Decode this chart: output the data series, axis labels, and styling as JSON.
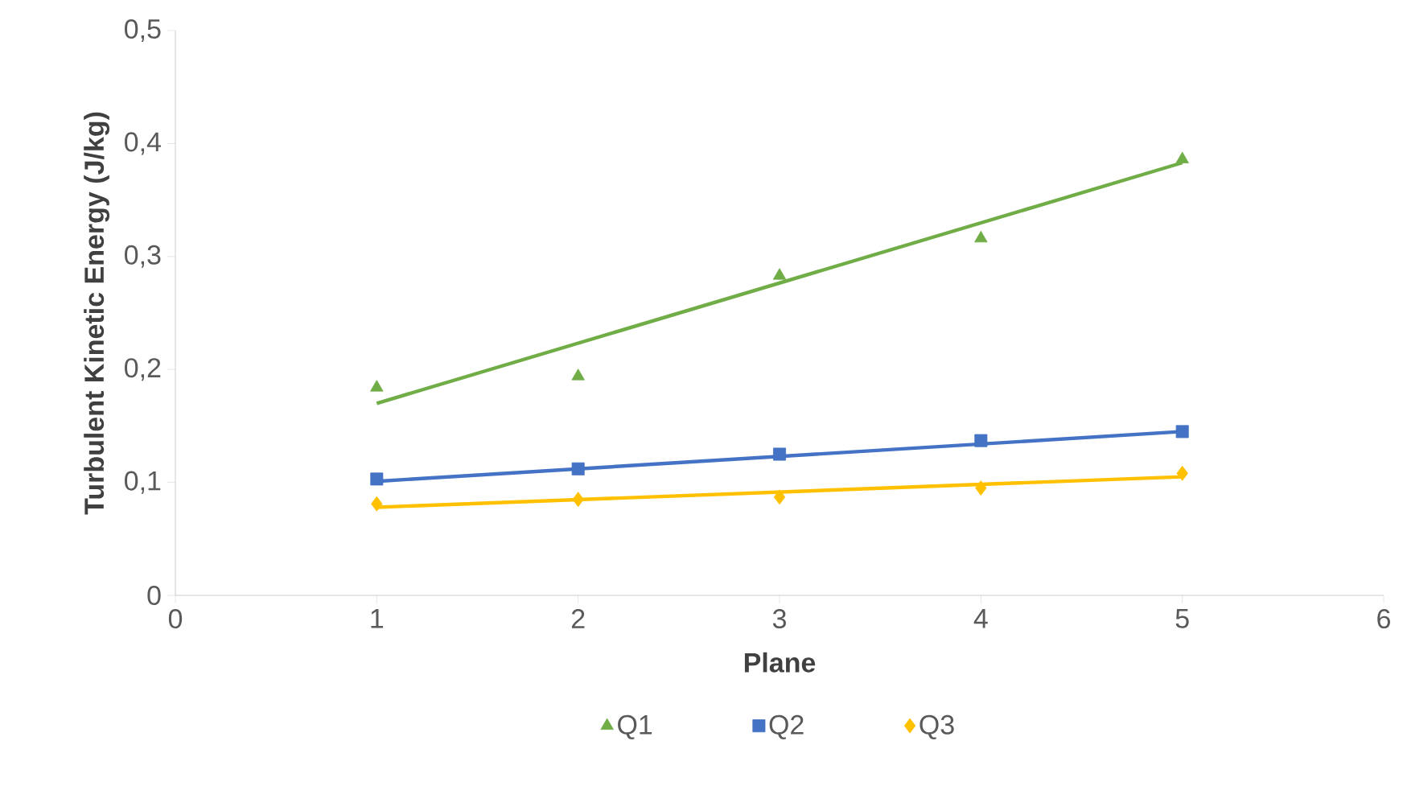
{
  "chart_data": {
    "type": "scatter",
    "xlabel": "Plane",
    "ylabel": "Turbulent Kinetic Energy (J/kg)",
    "xlim": [
      0,
      6
    ],
    "xticks": [
      0,
      1,
      2,
      3,
      4,
      5,
      6
    ],
    "ylim": [
      0,
      0.5
    ],
    "yticks": [
      0,
      {
        "value": 0.1,
        "label": "0,1"
      },
      {
        "value": 0.2,
        "label": "0,2"
      },
      {
        "value": 0.3,
        "label": "0,3"
      },
      {
        "value": 0.4,
        "label": "0,4"
      },
      {
        "value": 0.5,
        "label": "0,5"
      }
    ],
    "grid": false,
    "legend": "bottom",
    "series": [
      {
        "name": "Q1",
        "color": "#70ad47",
        "marker": "triangle",
        "x": [
          1,
          2,
          3,
          4,
          5
        ],
        "values": [
          0.184,
          0.194,
          0.283,
          0.316,
          0.386
        ]
      },
      {
        "name": "Q2",
        "color": "#4472c4",
        "marker": "square",
        "x": [
          1,
          2,
          3,
          4,
          5
        ],
        "values": [
          0.103,
          0.112,
          0.125,
          0.137,
          0.145
        ]
      },
      {
        "name": "Q3",
        "color": "#ffc000",
        "marker": "diamond",
        "x": [
          1,
          2,
          3,
          4,
          5
        ],
        "values": [
          0.081,
          0.085,
          0.087,
          0.095,
          0.108
        ]
      },
      {
        "type": "line",
        "color": "#70ad47",
        "marker": "none",
        "line_style": "solid",
        "x": [
          1,
          5
        ],
        "values": [
          0.17,
          0.383
        ]
      },
      {
        "type": "line",
        "color": "#4472c4",
        "marker": "none",
        "line_style": "solid",
        "x": [
          1,
          5
        ],
        "values": [
          0.101,
          0.145
        ]
      },
      {
        "type": "line",
        "color": "#ffc000",
        "marker": "none",
        "line_style": "solid",
        "x": [
          1,
          5
        ],
        "values": [
          0.078,
          0.105
        ]
      }
    ]
  }
}
